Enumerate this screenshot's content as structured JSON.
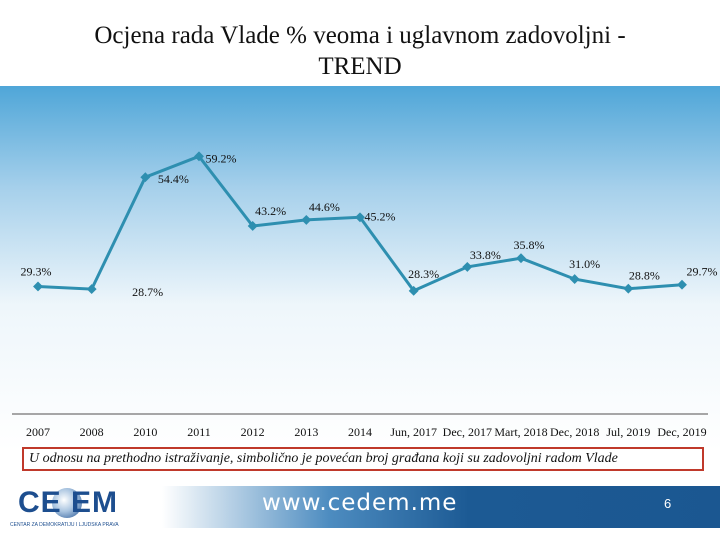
{
  "slide": {
    "title": "Ocjena rada Vlade % veoma i uglavnom zadovoljni -\nTREND",
    "note": "U odnosu na prethodno istraživanje, simbolično je povećan broj građana koji su zadovoljni radom Vlade",
    "url": "www.cedem.me",
    "page_number": "6",
    "logo_text": "CE  EM",
    "logo_subtitle": "CENTAR ZA DEMOKRATIJU I LJUDSKA PRAVA"
  },
  "colors": {
    "line": "#2e8fb0",
    "note_border": "#c0392b",
    "banner": "#1b5791"
  },
  "chart_data": {
    "type": "line",
    "title": "Ocjena rada Vlade % veoma i uglavnom zadovoljni - TREND",
    "categories": [
      "2007",
      "2008",
      "2010",
      "2011",
      "2012",
      "2013",
      "2014",
      "Jun, 2017",
      "Dec, 2017",
      "Mart, 2018",
      "Dec, 2018",
      "Jul, 2019",
      "Dec, 2019"
    ],
    "values": [
      29.3,
      28.7,
      54.4,
      59.2,
      43.2,
      44.6,
      45.2,
      28.3,
      33.8,
      35.8,
      31.0,
      28.8,
      29.7
    ],
    "data_labels": [
      "29.3%",
      "28.7%",
      "54.4%",
      "59.2%",
      "43.2%",
      "44.6%",
      "45.2%",
      "28.3%",
      "33.8%",
      "35.8%",
      "31.0%",
      "28.8%",
      "29.7%"
    ],
    "ylim": [
      0,
      80
    ],
    "grid": false,
    "legend": "none"
  }
}
